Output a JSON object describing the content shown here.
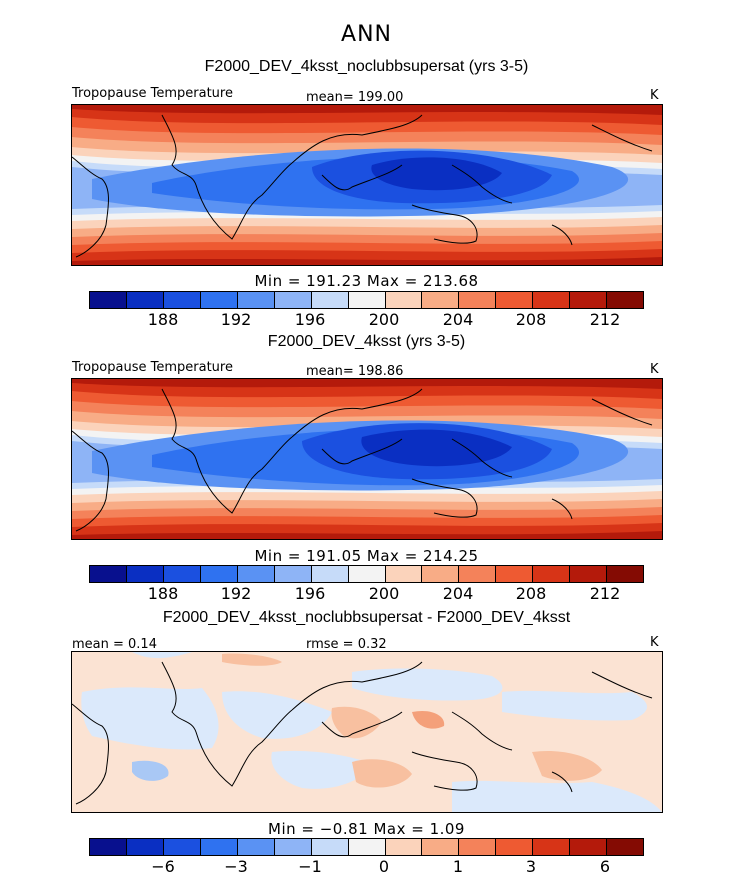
{
  "season": "ANN",
  "colors": [
    "#08108e",
    "#0a2fc2",
    "#1b50e0",
    "#2f72f0",
    "#5a92f3",
    "#8eb4f6",
    "#c6dbf9",
    "#f3f3f3",
    "#fbd3bb",
    "#f8ac86",
    "#f4825a",
    "#ee5a32",
    "#d73417",
    "#b41a0b",
    "#840b03"
  ],
  "panels": [
    {
      "title": "F2000_DEV_4ksst_noclubbsupersat (yrs 3-5)",
      "variable": "Tropopause Temperature",
      "mean_text": "mean= 199.00",
      "units": "K",
      "min_max_text": "Min = 191.23 Max = 213.68",
      "colorbar_ticks": [
        "188",
        "192",
        "196",
        "200",
        "204",
        "208",
        "212"
      ]
    },
    {
      "title": "F2000_DEV_4ksst (yrs 3-5)",
      "variable": "Tropopause Temperature",
      "mean_text": "mean= 198.86",
      "units": "K",
      "min_max_text": "Min = 191.05 Max = 214.25",
      "colorbar_ticks": [
        "188",
        "192",
        "196",
        "200",
        "204",
        "208",
        "212"
      ]
    },
    {
      "title": "F2000_DEV_4ksst_noclubbsupersat - F2000_DEV_4ksst",
      "mean_text": "mean =    0.14",
      "rmse_text": "rmse =    0.32",
      "units": "K",
      "min_max_text": "Min =  −0.81 Max =    1.09",
      "colorbar_ticks": [
        "−6",
        "−3",
        "−1",
        "0",
        "1",
        "3",
        "6"
      ]
    }
  ]
}
